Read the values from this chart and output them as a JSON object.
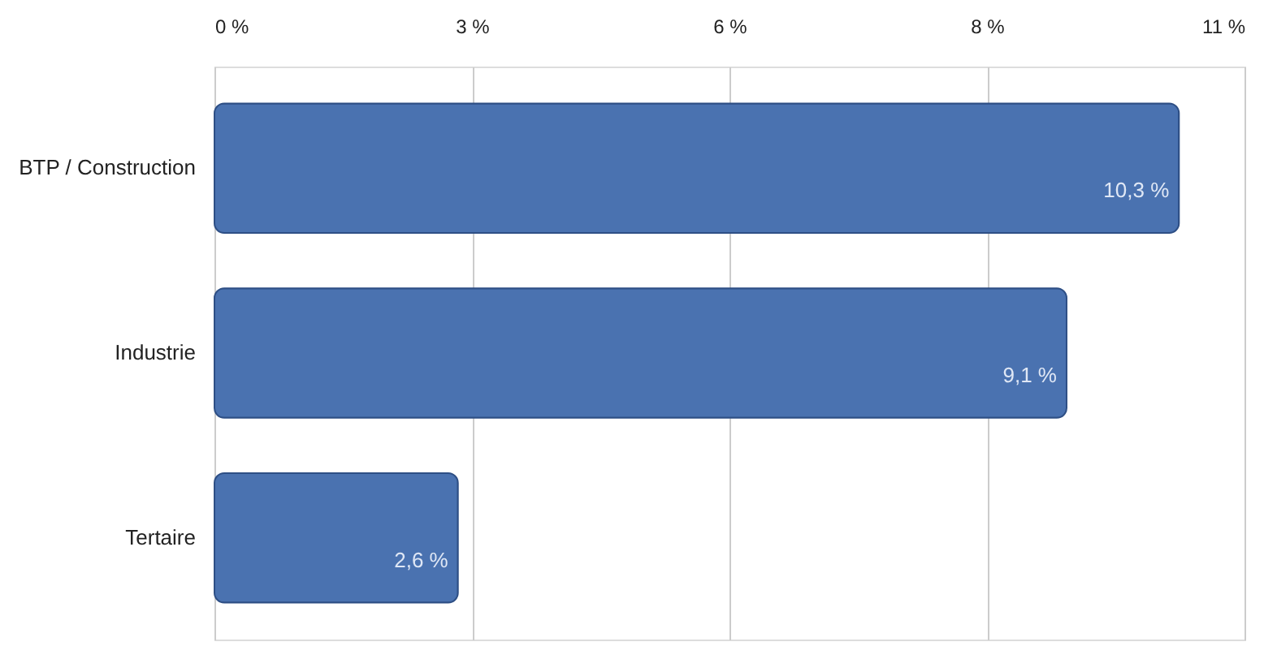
{
  "chart_data": {
    "type": "bar",
    "orientation": "horizontal",
    "categories": [
      "BTP / Construction",
      "Industrie",
      "Tertaire"
    ],
    "values": [
      10.3,
      9.1,
      2.6
    ],
    "value_labels": [
      "10,3 %",
      "9,1 %",
      "2,6 %"
    ],
    "color": "#4a72b0",
    "xlim": [
      0,
      11
    ],
    "xticks": [
      {
        "value": 0,
        "label": "0 %"
      },
      {
        "value": 2.75,
        "label": "3 %"
      },
      {
        "value": 5.5,
        "label": "6 %"
      },
      {
        "value": 8.25,
        "label": "8 %"
      },
      {
        "value": 11,
        "label": "11 %"
      }
    ],
    "grid": "x"
  }
}
